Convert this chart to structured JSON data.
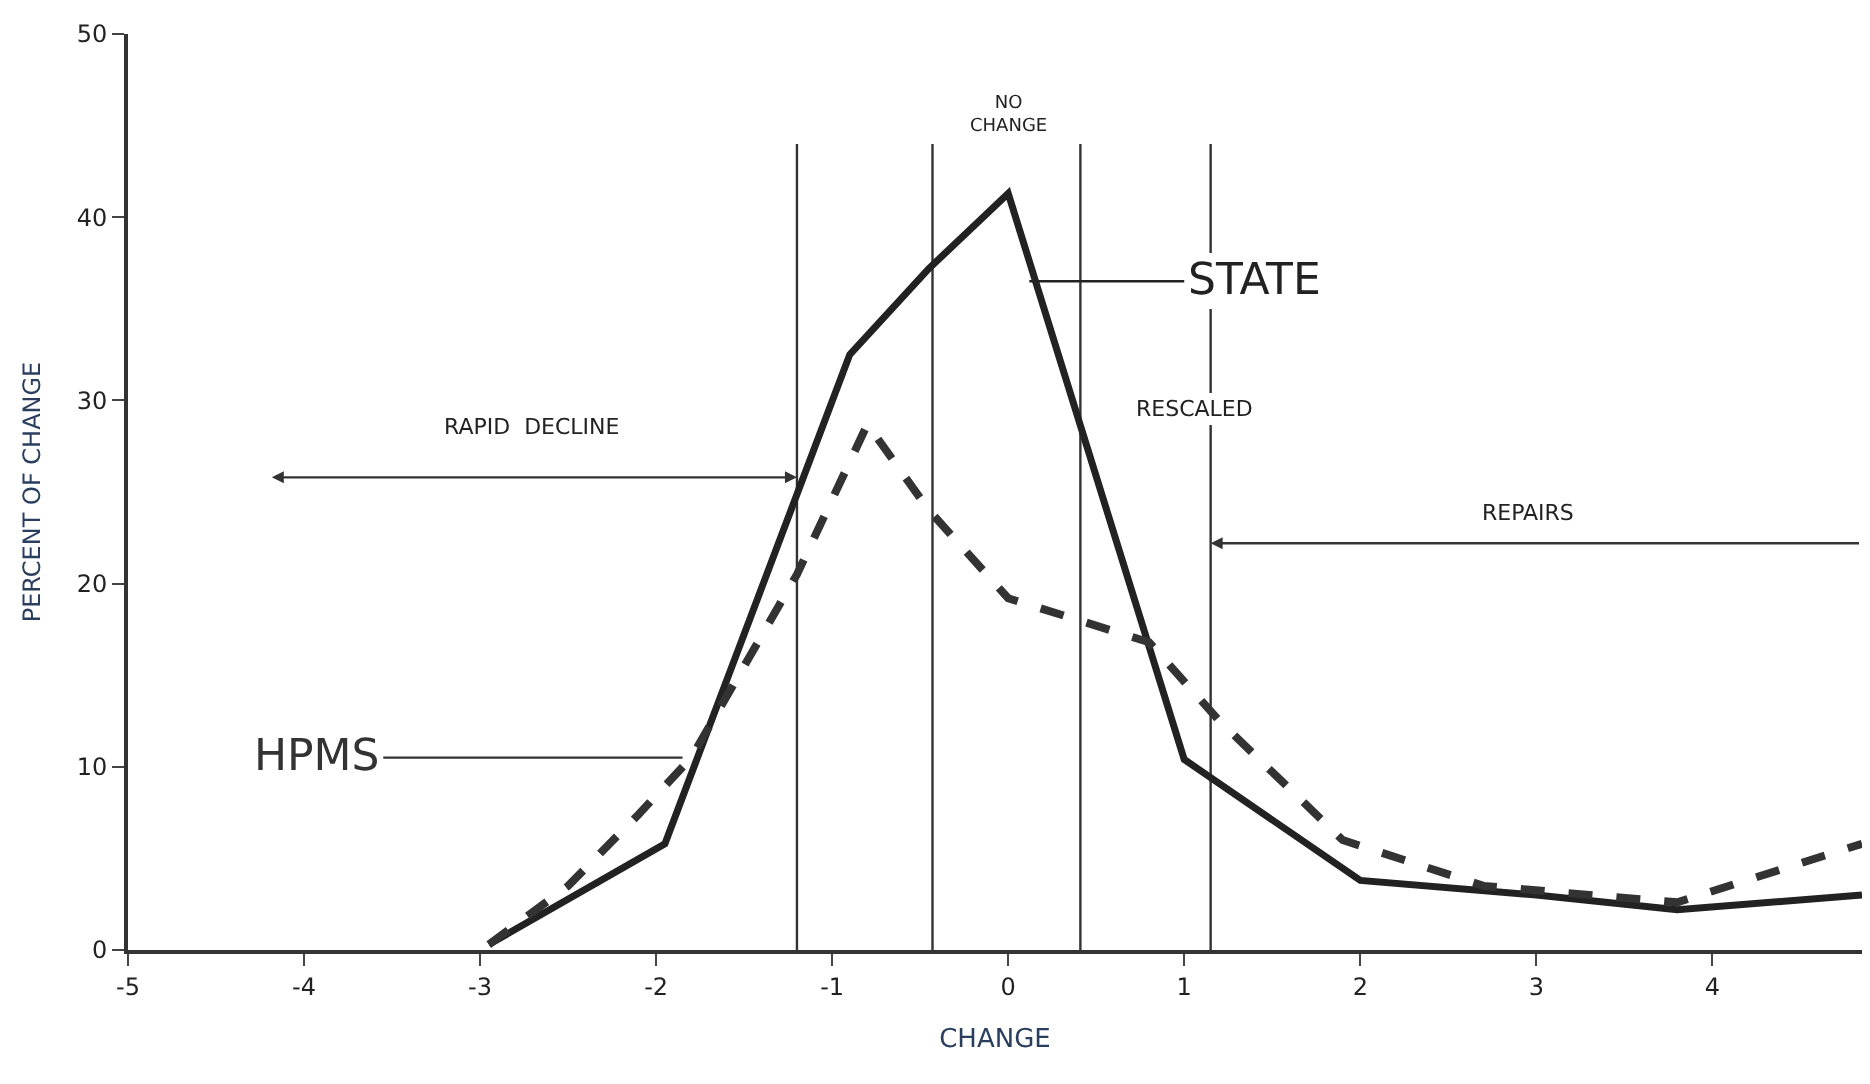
{
  "chart_data": {
    "type": "line",
    "xlabel": "CHANGE",
    "ylabel": "PERCENT OF CHANGE",
    "xlim": [
      -5,
      4.85
    ],
    "xticks": [
      -5,
      -4,
      -3,
      -2,
      -1,
      0,
      1,
      2,
      3,
      4
    ],
    "ylim": [
      0,
      50
    ],
    "yticks": [
      0,
      10,
      20,
      30,
      40,
      50
    ],
    "grid": false,
    "marker": "none",
    "series": [
      {
        "name": "STATE",
        "color": "#222222",
        "line_style": "solid",
        "x": [
          -2.95,
          -1.95,
          -0.9,
          -0.45,
          0,
          1.0,
          2.0,
          3.0,
          3.8,
          4.85
        ],
        "values": [
          0.3,
          5.8,
          32.5,
          37.2,
          41.3,
          10.4,
          3.8,
          3.0,
          2.2,
          3.0
        ]
      },
      {
        "name": "HPMS",
        "color": "#333333",
        "line_style": "dashed",
        "x": [
          -2.95,
          -2.5,
          -2.1,
          -1.8,
          -1.2,
          -0.8,
          -0.45,
          0,
          0.8,
          1.2,
          1.9,
          2.7,
          3.8,
          4.85
        ],
        "values": [
          0.3,
          3.5,
          7.4,
          10.5,
          20.5,
          28.7,
          24.0,
          19.2,
          16.8,
          12.5,
          6.0,
          3.5,
          2.6,
          5.8
        ]
      }
    ],
    "ref_lines": [
      {
        "axis": "x",
        "value": -1.2,
        "color": "#333333"
      },
      {
        "axis": "x",
        "value": -0.43,
        "color": "#333333"
      },
      {
        "axis": "x",
        "value": 0.41,
        "color": "#333333"
      },
      {
        "axis": "x",
        "value": 1.15,
        "color": "#333333"
      }
    ],
    "annotations": [
      "RAPID  DECLINE",
      "NO CHANGE",
      "RESCALED",
      "REPAIRS"
    ]
  }
}
